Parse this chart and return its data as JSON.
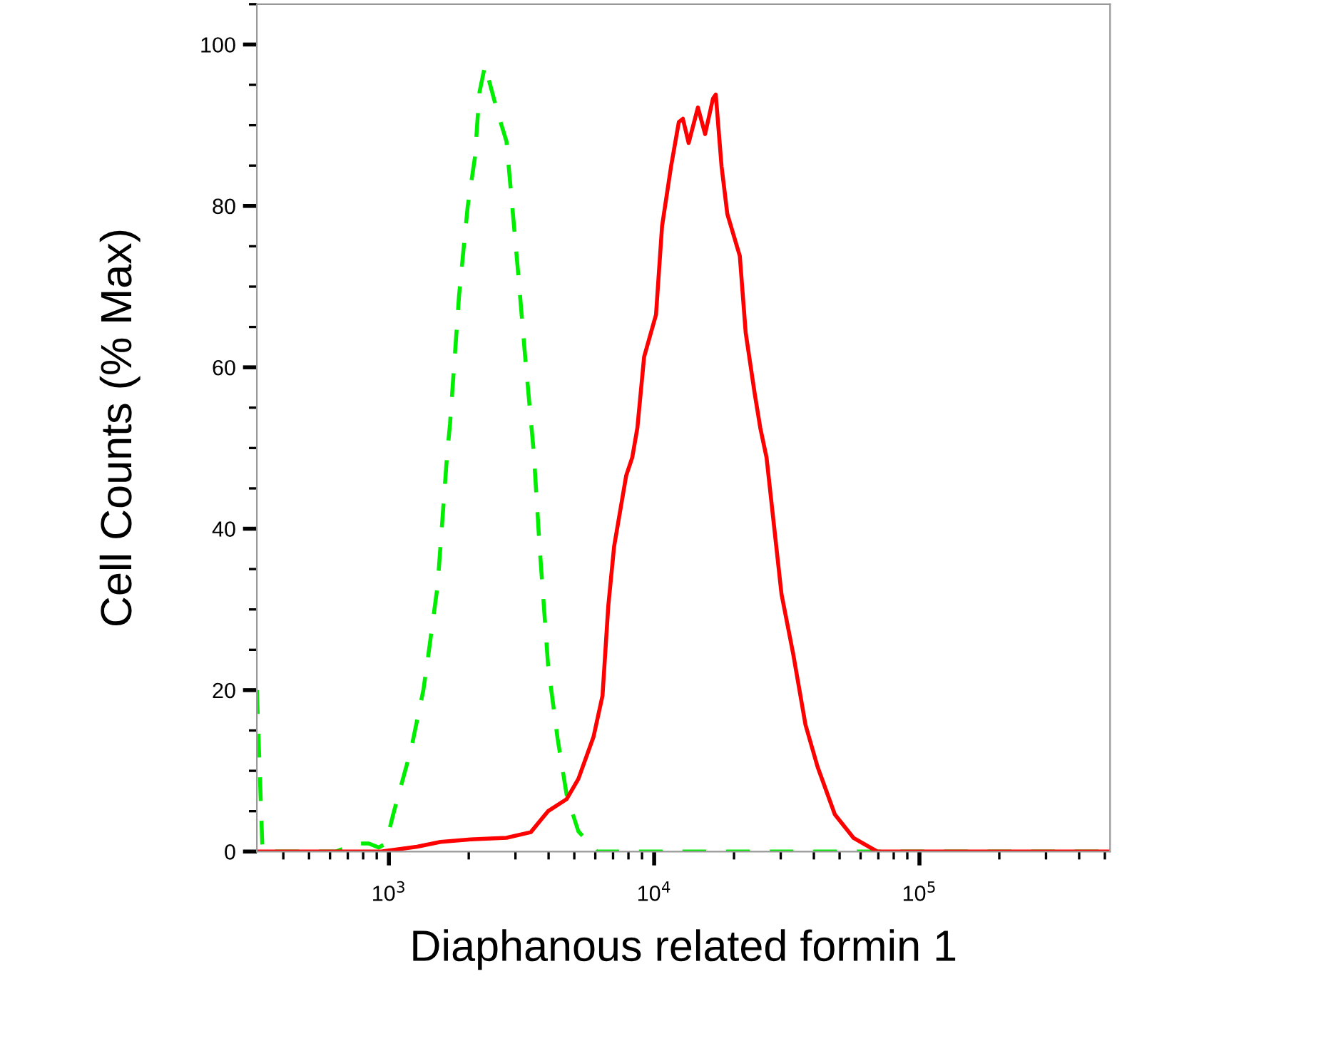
{
  "chart_data": {
    "type": "line",
    "xlabel": "Diaphanous related formin 1",
    "ylabel": "Cell Counts (% Max)",
    "log": "x",
    "xlim": [
      318,
      523000
    ],
    "xticks": [
      {
        "value": 1000,
        "label": "10$^{3}$"
      },
      {
        "value": 10000,
        "label": "10$^{4}$"
      },
      {
        "value": 100000,
        "label": "10$^{5}$"
      }
    ],
    "ylim": [
      0,
      105
    ],
    "yticks": [
      0,
      20,
      40,
      60,
      80,
      100
    ],
    "grid": false,
    "legend": false,
    "series": [
      {
        "color": "#00ee00",
        "line_style": "dashed",
        "x": [
          318,
          334,
          631,
          760,
          840,
          916,
          975,
          1038,
          1213,
          1349,
          1417,
          1527,
          1656,
          1700,
          1840,
          1983,
          2110,
          2193,
          2303,
          2574,
          2775,
          2917,
          3084,
          3250,
          3516,
          3696,
          3984,
          4325,
          4680,
          5180,
          6085,
          523000
        ],
        "values": [
          20,
          0,
          0,
          1,
          1,
          0.5,
          1,
          4.6,
          12.7,
          20,
          25,
          33,
          49,
          53,
          69,
          80,
          86,
          94,
          97.4,
          91.5,
          88,
          80,
          71,
          62,
          49.5,
          38,
          23,
          14,
          7,
          2.5,
          0,
          0
        ]
      },
      {
        "color": "#ff0000",
        "line_style": "solid",
        "x": [
          318,
          936,
          1277,
          1566,
          2032,
          2775,
          3428,
          3981,
          4680,
          5180,
          5906,
          6386,
          6714,
          7063,
          7847,
          8265,
          8645,
          9165,
          10160,
          10710,
          11580,
          12390,
          12830,
          13490,
          14620,
          15560,
          16660,
          17070,
          17950,
          18870,
          21030,
          22130,
          23890,
          25120,
          26530,
          30200,
          33420,
          37190,
          41310,
          47980,
          56380,
          69290,
          523000
        ],
        "values": [
          0,
          0,
          0.6,
          1.2,
          1.5,
          1.7,
          2.4,
          5.0,
          6.5,
          9.0,
          14.2,
          19.3,
          30.4,
          37.8,
          46.6,
          48.8,
          52.5,
          61.3,
          66.5,
          77.5,
          84.9,
          90.4,
          90.8,
          87.8,
          92.2,
          88.9,
          93.3,
          93.8,
          84.9,
          79,
          73.8,
          64.3,
          56.9,
          52.5,
          48.8,
          31.9,
          24.5,
          15.7,
          10.5,
          4.6,
          1.7,
          0,
          0
        ]
      }
    ]
  }
}
